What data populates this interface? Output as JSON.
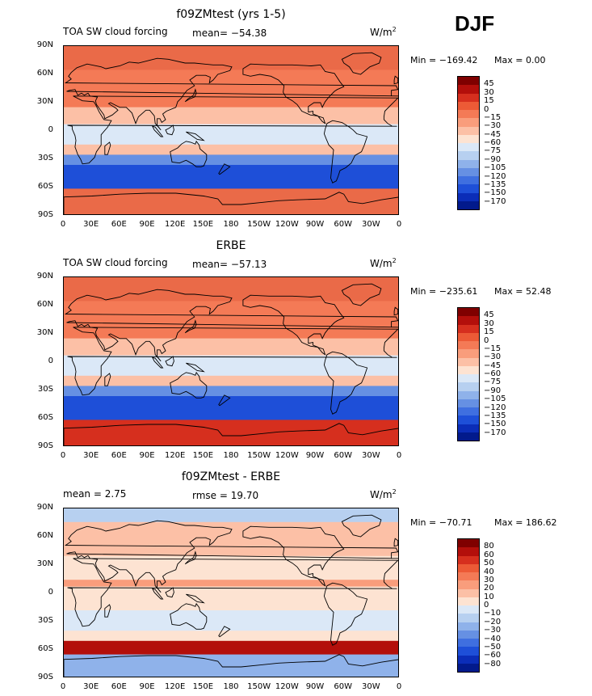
{
  "season": "DJF",
  "colors": {
    "ocean_cloud_bands": "#1e4fd8",
    "warm": "#ea6a48",
    "neutral": "#fbe7d8",
    "land_outline": "#000000"
  },
  "panels": [
    {
      "title": "f09ZMtest (yrs 1-5)",
      "left_label": "TOA SW cloud forcing",
      "center_label": "mean= −54.38",
      "units": "W/m",
      "units_sup": "2",
      "min_label": "Min = −169.42",
      "max_label": "Max =    0.00",
      "cbar_labels": [
        "45",
        "30",
        "15",
        "0",
        "−15",
        "−30",
        "−45",
        "−60",
        "−75",
        "−90",
        "−105",
        "−120",
        "−135",
        "−150",
        "−170"
      ]
    },
    {
      "title": "ERBE",
      "left_label": "TOA SW cloud forcing",
      "center_label": "mean= −57.13",
      "units": "W/m",
      "units_sup": "2",
      "min_label": "Min = −235.61",
      "max_label": "Max =  52.48",
      "cbar_labels": [
        "45",
        "30",
        "15",
        "0",
        "−15",
        "−30",
        "−45",
        "−60",
        "−75",
        "−90",
        "−105",
        "−120",
        "−135",
        "−150",
        "−170"
      ]
    },
    {
      "title": "f09ZMtest - ERBE",
      "left_label": "mean =    2.75",
      "center_label": "rmse =   19.70",
      "units": "W/m",
      "units_sup": "2",
      "min_label": "Min = −70.71",
      "max_label": "Max = 186.62",
      "cbar_labels": [
        "80",
        "60",
        "50",
        "40",
        "30",
        "20",
        "10",
        "0",
        "−10",
        "−20",
        "−30",
        "−40",
        "−50",
        "−60",
        "−80"
      ]
    }
  ],
  "lat_ticks": [
    "90N",
    "60N",
    "30N",
    "0",
    "30S",
    "60S",
    "90S"
  ],
  "lon_ticks": [
    "0",
    "30E",
    "60E",
    "90E",
    "120E",
    "150E",
    "180",
    "150W",
    "120W",
    "90W",
    "60W",
    "30W",
    "0"
  ],
  "colorbar_palette": [
    "#7f0000",
    "#b30f0b",
    "#d62f1e",
    "#ec5a36",
    "#f47a56",
    "#f99d7c",
    "#fcc0a6",
    "#fde3d2",
    "#dbe8f7",
    "#b7d0f0",
    "#8fb2ea",
    "#6690e3",
    "#3f6fe0",
    "#1e4fd8",
    "#0b2db8",
    "#021a8c"
  ]
}
